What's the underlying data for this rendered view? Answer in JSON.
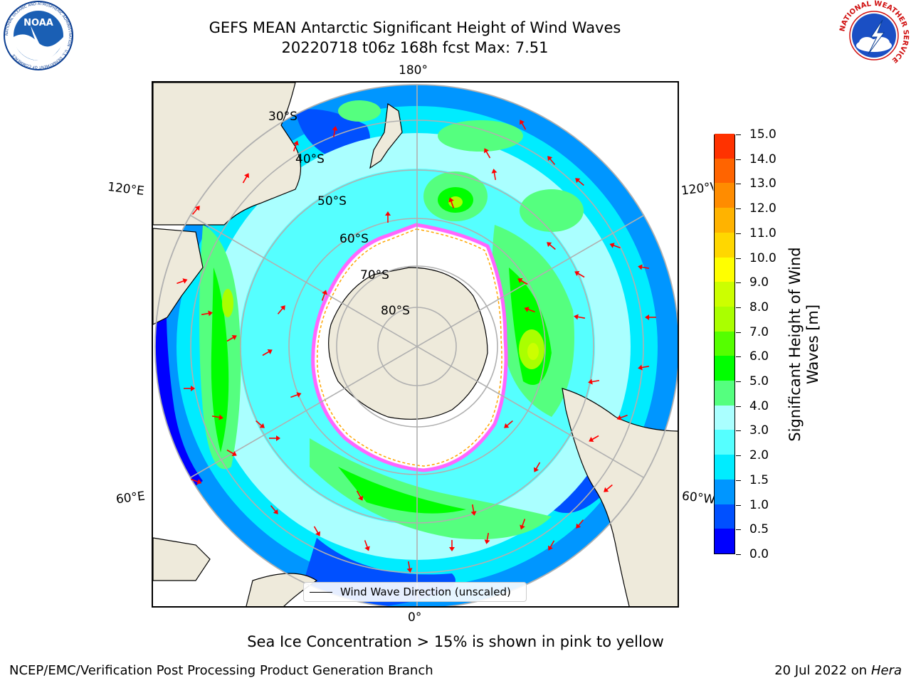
{
  "header": {
    "title_line1": "GEFS MEAN Antarctic Significant Height of Wind Waves",
    "title_line2": "20220718 t06z 168h fcst   Max: 7.51"
  },
  "logos": {
    "left": "NOAA",
    "left_ring": "NATIONAL OCEANIC AND ATMOSPHERIC ADMINISTRATION · U.S. DEPARTMENT OF COMMERCE",
    "right_ring": "NATIONAL WEATHER SERVICE"
  },
  "map": {
    "projection": "south-polar-stereographic",
    "lon_labels": {
      "top": "180°",
      "bottom": "0°",
      "left_upper": "120°E",
      "left_lower": "60°E",
      "right_upper": "120°W",
      "right_lower": "60°W"
    },
    "lat_labels": [
      "30°S",
      "40°S",
      "50°S",
      "60°S",
      "70°S",
      "80°S"
    ],
    "land_color": "#eeeadb",
    "ice_edge_colors": [
      "#ff66ff",
      "#ffa500",
      "#ffff00"
    ],
    "arrow_color": "#ff0000"
  },
  "colorbar": {
    "title": "Significant Height of Wind Waves [m]",
    "title_line1": "Significant Height of Wind",
    "title_line2": "Waves [m]",
    "ticks": [
      "0.0",
      "0.5",
      "1.0",
      "1.5",
      "2.0",
      "3.0",
      "4.0",
      "5.0",
      "6.0",
      "7.0",
      "8.0",
      "9.0",
      "10.0",
      "11.0",
      "12.0",
      "13.0",
      "14.0",
      "15.0"
    ],
    "colors": [
      "#0000ff",
      "#0050ff",
      "#0096ff",
      "#00ecff",
      "#55ffff",
      "#aaffff",
      "#55ff7f",
      "#00ff00",
      "#55ff00",
      "#aaff00",
      "#ccff00",
      "#ffff00",
      "#ffd700",
      "#ffb300",
      "#ff8c00",
      "#ff6400",
      "#ff3200",
      "#ff0000"
    ]
  },
  "legend": {
    "label": "Wind Wave Direction (unscaled)"
  },
  "notes": {
    "sea_ice": "Sea Ice Concentration > 15% is shown in pink to yellow",
    "credit": "NCEP/EMC/Verification Post Processing Product Generation Branch",
    "date_prefix": "20 Jul 2022 on ",
    "machine": "Hera"
  }
}
